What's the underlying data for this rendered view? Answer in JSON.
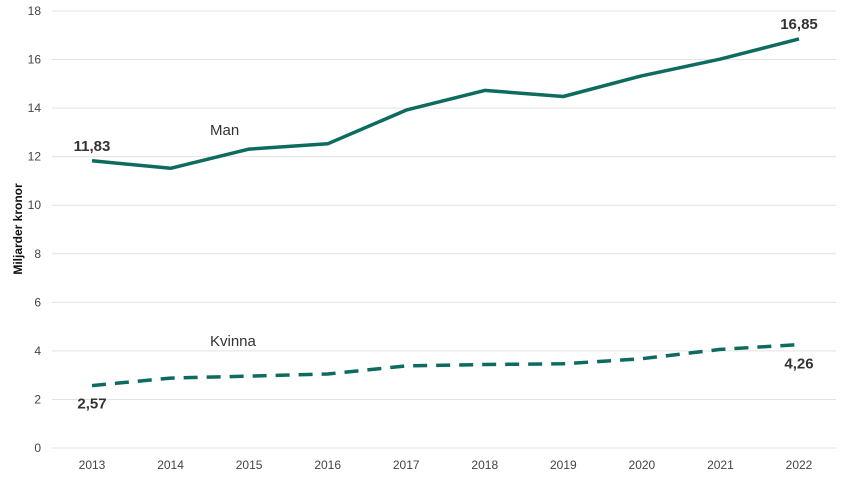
{
  "chart_data": {
    "type": "line",
    "title": "",
    "xlabel": "",
    "ylabel": "Miljarder kronor",
    "x": [
      "2013",
      "2014",
      "2015",
      "2016",
      "2017",
      "2018",
      "2019",
      "2020",
      "2021",
      "2022"
    ],
    "ylim": [
      0,
      18
    ],
    "yticks": [
      "0",
      "2",
      "4",
      "6",
      "8",
      "10",
      "12",
      "14",
      "16",
      "18"
    ],
    "grid": true,
    "legend": "none",
    "series": [
      {
        "name": "Man",
        "values": [
          11.83,
          11.52,
          12.31,
          12.53,
          13.92,
          14.73,
          14.48,
          15.33,
          16.02,
          16.85
        ],
        "color": "#0d6b5f",
        "style": "solid",
        "start_label": "11,83",
        "end_label": "16,85"
      },
      {
        "name": "Kvinna",
        "values": [
          2.57,
          2.88,
          2.96,
          3.05,
          3.38,
          3.44,
          3.47,
          3.68,
          4.06,
          4.26
        ],
        "color": "#0d6b5f",
        "style": "dashed",
        "start_label": "2,57",
        "end_label": "4,26"
      }
    ]
  }
}
